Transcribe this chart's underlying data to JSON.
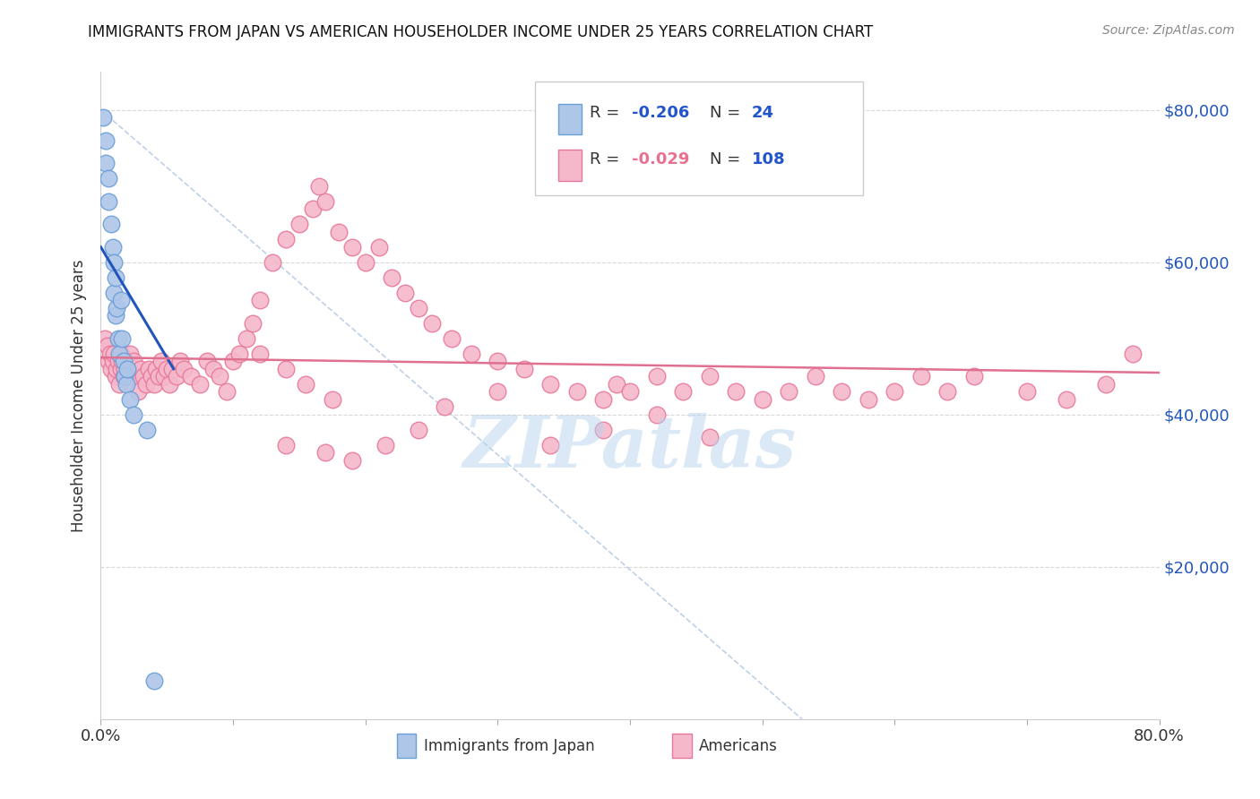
{
  "title": "IMMIGRANTS FROM JAPAN VS AMERICAN HOUSEHOLDER INCOME UNDER 25 YEARS CORRELATION CHART",
  "source": "Source: ZipAtlas.com",
  "ylabel": "Householder Income Under 25 years",
  "xlim": [
    0,
    0.8
  ],
  "ylim": [
    0,
    85000
  ],
  "yticks": [
    0,
    20000,
    40000,
    60000,
    80000
  ],
  "ytick_labels": [
    "",
    "$20,000",
    "$40,000",
    "$60,000",
    "$80,000"
  ],
  "japan_color": "#aec6e8",
  "japan_edge": "#6a9fd8",
  "american_color": "#f5b8cb",
  "american_edge": "#e8789a",
  "japan_line_color": "#2255bb",
  "american_line_color": "#e07090",
  "watermark": "ZIPatlas",
  "watermark_color": "#b8d4ee",
  "japan_line_x0": 0.0,
  "japan_line_y0": 62000,
  "japan_line_x1": 0.055,
  "japan_line_y1": 46000,
  "american_line_x0": 0.0,
  "american_line_y0": 47500,
  "american_line_x1": 0.8,
  "american_line_y1": 45500,
  "diag_line_x0": 0.0,
  "diag_line_y0": 80000,
  "diag_line_x1": 0.53,
  "diag_line_y1": 0,
  "japan_x": [
    0.002,
    0.004,
    0.004,
    0.006,
    0.006,
    0.008,
    0.009,
    0.01,
    0.01,
    0.011,
    0.011,
    0.012,
    0.013,
    0.014,
    0.015,
    0.016,
    0.017,
    0.018,
    0.019,
    0.02,
    0.022,
    0.025,
    0.035,
    0.04
  ],
  "japan_y": [
    79000,
    76000,
    73000,
    71000,
    68000,
    65000,
    62000,
    60000,
    56000,
    58000,
    53000,
    54000,
    50000,
    48000,
    55000,
    50000,
    47000,
    45000,
    44000,
    46000,
    42000,
    40000,
    38000,
    5000
  ],
  "american_x": [
    0.003,
    0.005,
    0.006,
    0.007,
    0.008,
    0.009,
    0.01,
    0.011,
    0.012,
    0.013,
    0.014,
    0.015,
    0.015,
    0.016,
    0.017,
    0.018,
    0.019,
    0.02,
    0.021,
    0.022,
    0.023,
    0.024,
    0.025,
    0.027,
    0.028,
    0.03,
    0.032,
    0.034,
    0.036,
    0.038,
    0.04,
    0.042,
    0.044,
    0.046,
    0.048,
    0.05,
    0.052,
    0.054,
    0.057,
    0.06,
    0.063,
    0.068,
    0.075,
    0.08,
    0.085,
    0.09,
    0.095,
    0.1,
    0.105,
    0.11,
    0.115,
    0.12,
    0.13,
    0.14,
    0.15,
    0.16,
    0.165,
    0.17,
    0.18,
    0.19,
    0.2,
    0.21,
    0.22,
    0.23,
    0.24,
    0.25,
    0.265,
    0.28,
    0.3,
    0.32,
    0.34,
    0.36,
    0.38,
    0.39,
    0.4,
    0.42,
    0.44,
    0.46,
    0.48,
    0.5,
    0.52,
    0.54,
    0.56,
    0.58,
    0.6,
    0.62,
    0.64,
    0.66,
    0.7,
    0.73,
    0.76,
    0.78,
    0.38,
    0.42,
    0.46,
    0.14,
    0.17,
    0.19,
    0.215,
    0.24,
    0.26,
    0.3,
    0.34,
    0.12,
    0.14,
    0.155,
    0.175
  ],
  "american_y": [
    50000,
    49000,
    47000,
    48000,
    46000,
    47000,
    48000,
    45000,
    46000,
    47000,
    44000,
    48000,
    46000,
    47000,
    45000,
    46000,
    47000,
    45000,
    46000,
    48000,
    45000,
    46000,
    47000,
    45000,
    43000,
    46000,
    45000,
    44000,
    46000,
    45000,
    44000,
    46000,
    45000,
    47000,
    45000,
    46000,
    44000,
    46000,
    45000,
    47000,
    46000,
    45000,
    44000,
    47000,
    46000,
    45000,
    43000,
    47000,
    48000,
    50000,
    52000,
    55000,
    60000,
    63000,
    65000,
    67000,
    70000,
    68000,
    64000,
    62000,
    60000,
    62000,
    58000,
    56000,
    54000,
    52000,
    50000,
    48000,
    47000,
    46000,
    44000,
    43000,
    42000,
    44000,
    43000,
    45000,
    43000,
    45000,
    43000,
    42000,
    43000,
    45000,
    43000,
    42000,
    43000,
    45000,
    43000,
    45000,
    43000,
    42000,
    44000,
    48000,
    38000,
    40000,
    37000,
    36000,
    35000,
    34000,
    36000,
    38000,
    41000,
    43000,
    36000,
    48000,
    46000,
    44000,
    42000
  ]
}
